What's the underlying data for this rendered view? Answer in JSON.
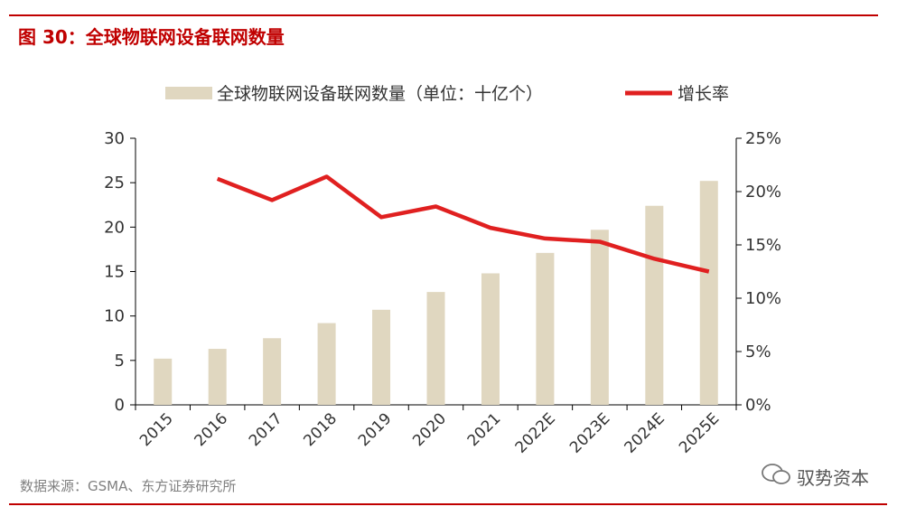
{
  "title": "图 30：全球物联网设备联网数量",
  "source": "数据来源：GSMA、东方证券研究所",
  "watermark": "驭势资本",
  "chart_data": {
    "type": "bar+line",
    "categories": [
      "2015",
      "2016",
      "2017",
      "2018",
      "2019",
      "2020",
      "2021",
      "2022E",
      "2023E",
      "2024E",
      "2025E"
    ],
    "series": [
      {
        "name": "全球物联网设备联网数量（单位：十亿个）",
        "type": "bar",
        "axis": "left",
        "color": "#e0d7c0",
        "values": [
          5.2,
          6.3,
          7.5,
          9.2,
          10.7,
          12.7,
          14.8,
          17.1,
          19.7,
          22.4,
          25.2
        ]
      },
      {
        "name": "增长率",
        "type": "line",
        "axis": "right",
        "color": "#e02020",
        "values": [
          null,
          21.2,
          19.2,
          21.4,
          17.6,
          18.6,
          16.6,
          15.6,
          15.3,
          13.7,
          12.5
        ]
      }
    ],
    "yleft": {
      "lim": [
        0,
        30
      ],
      "ticks": [
        "0",
        "5",
        "10",
        "15",
        "20",
        "25",
        "30"
      ]
    },
    "yright": {
      "lim": [
        0,
        25
      ],
      "ticks": [
        "0%",
        "5%",
        "10%",
        "15%",
        "20%",
        "25%"
      ]
    },
    "legend": "top",
    "grid": false
  }
}
